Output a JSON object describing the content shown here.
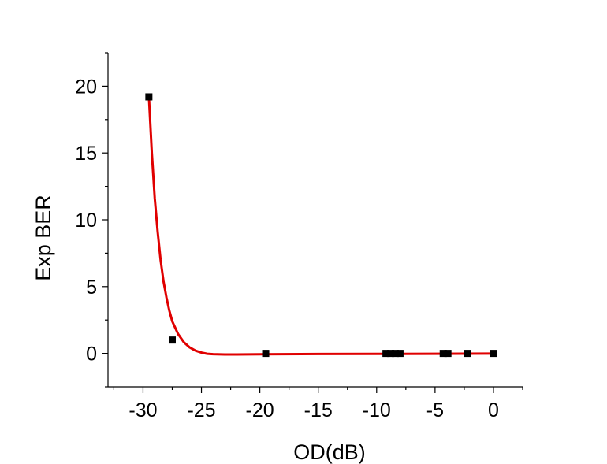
{
  "chart_data": {
    "type": "scatter",
    "xlabel": "OD(dB)",
    "ylabel": "Exp BER",
    "xlim": [
      -33,
      2.5
    ],
    "ylim": [
      -2.5,
      22.5
    ],
    "x_ticks": [
      -30,
      -25,
      -20,
      -15,
      -10,
      -5,
      0
    ],
    "x_tick_labels": [
      "-30",
      "-25",
      "-20",
      "-15",
      "-10",
      "-5",
      "0"
    ],
    "y_ticks": [
      0,
      5,
      10,
      15,
      20
    ],
    "y_tick_labels": [
      "0",
      "5",
      "10",
      "15",
      "20"
    ],
    "grid": false,
    "series": [
      {
        "kind": "points",
        "color": "#000000",
        "marker": "square",
        "x": [
          -29.5,
          -27.5,
          -19.5,
          -9.2,
          -8.8,
          -8.4,
          -8.0,
          -4.3,
          -3.9,
          -2.2,
          0
        ],
        "y": [
          19.2,
          1.0,
          0,
          0,
          0,
          0,
          0,
          0,
          0,
          0,
          0
        ]
      },
      {
        "kind": "fit",
        "color": "#e00000",
        "x": [
          -29.5,
          -29.25,
          -29.0,
          -28.75,
          -28.5,
          -28.25,
          -28.0,
          -27.75,
          -27.5,
          -27.0,
          -26.5,
          -26.0,
          -25.5,
          -25.0,
          -24.5,
          -24.0,
          -23.0,
          -22.0,
          -20.0,
          -15.0,
          -10.0,
          -5.0,
          0
        ],
        "y": [
          19.2,
          15.0,
          11.6,
          9.1,
          7.0,
          5.4,
          4.2,
          3.2,
          2.4,
          1.45,
          0.83,
          0.44,
          0.2,
          0.06,
          -0.03,
          -0.06,
          -0.08,
          -0.08,
          -0.07,
          -0.05,
          -0.04,
          -0.03,
          -0.02
        ]
      }
    ]
  }
}
